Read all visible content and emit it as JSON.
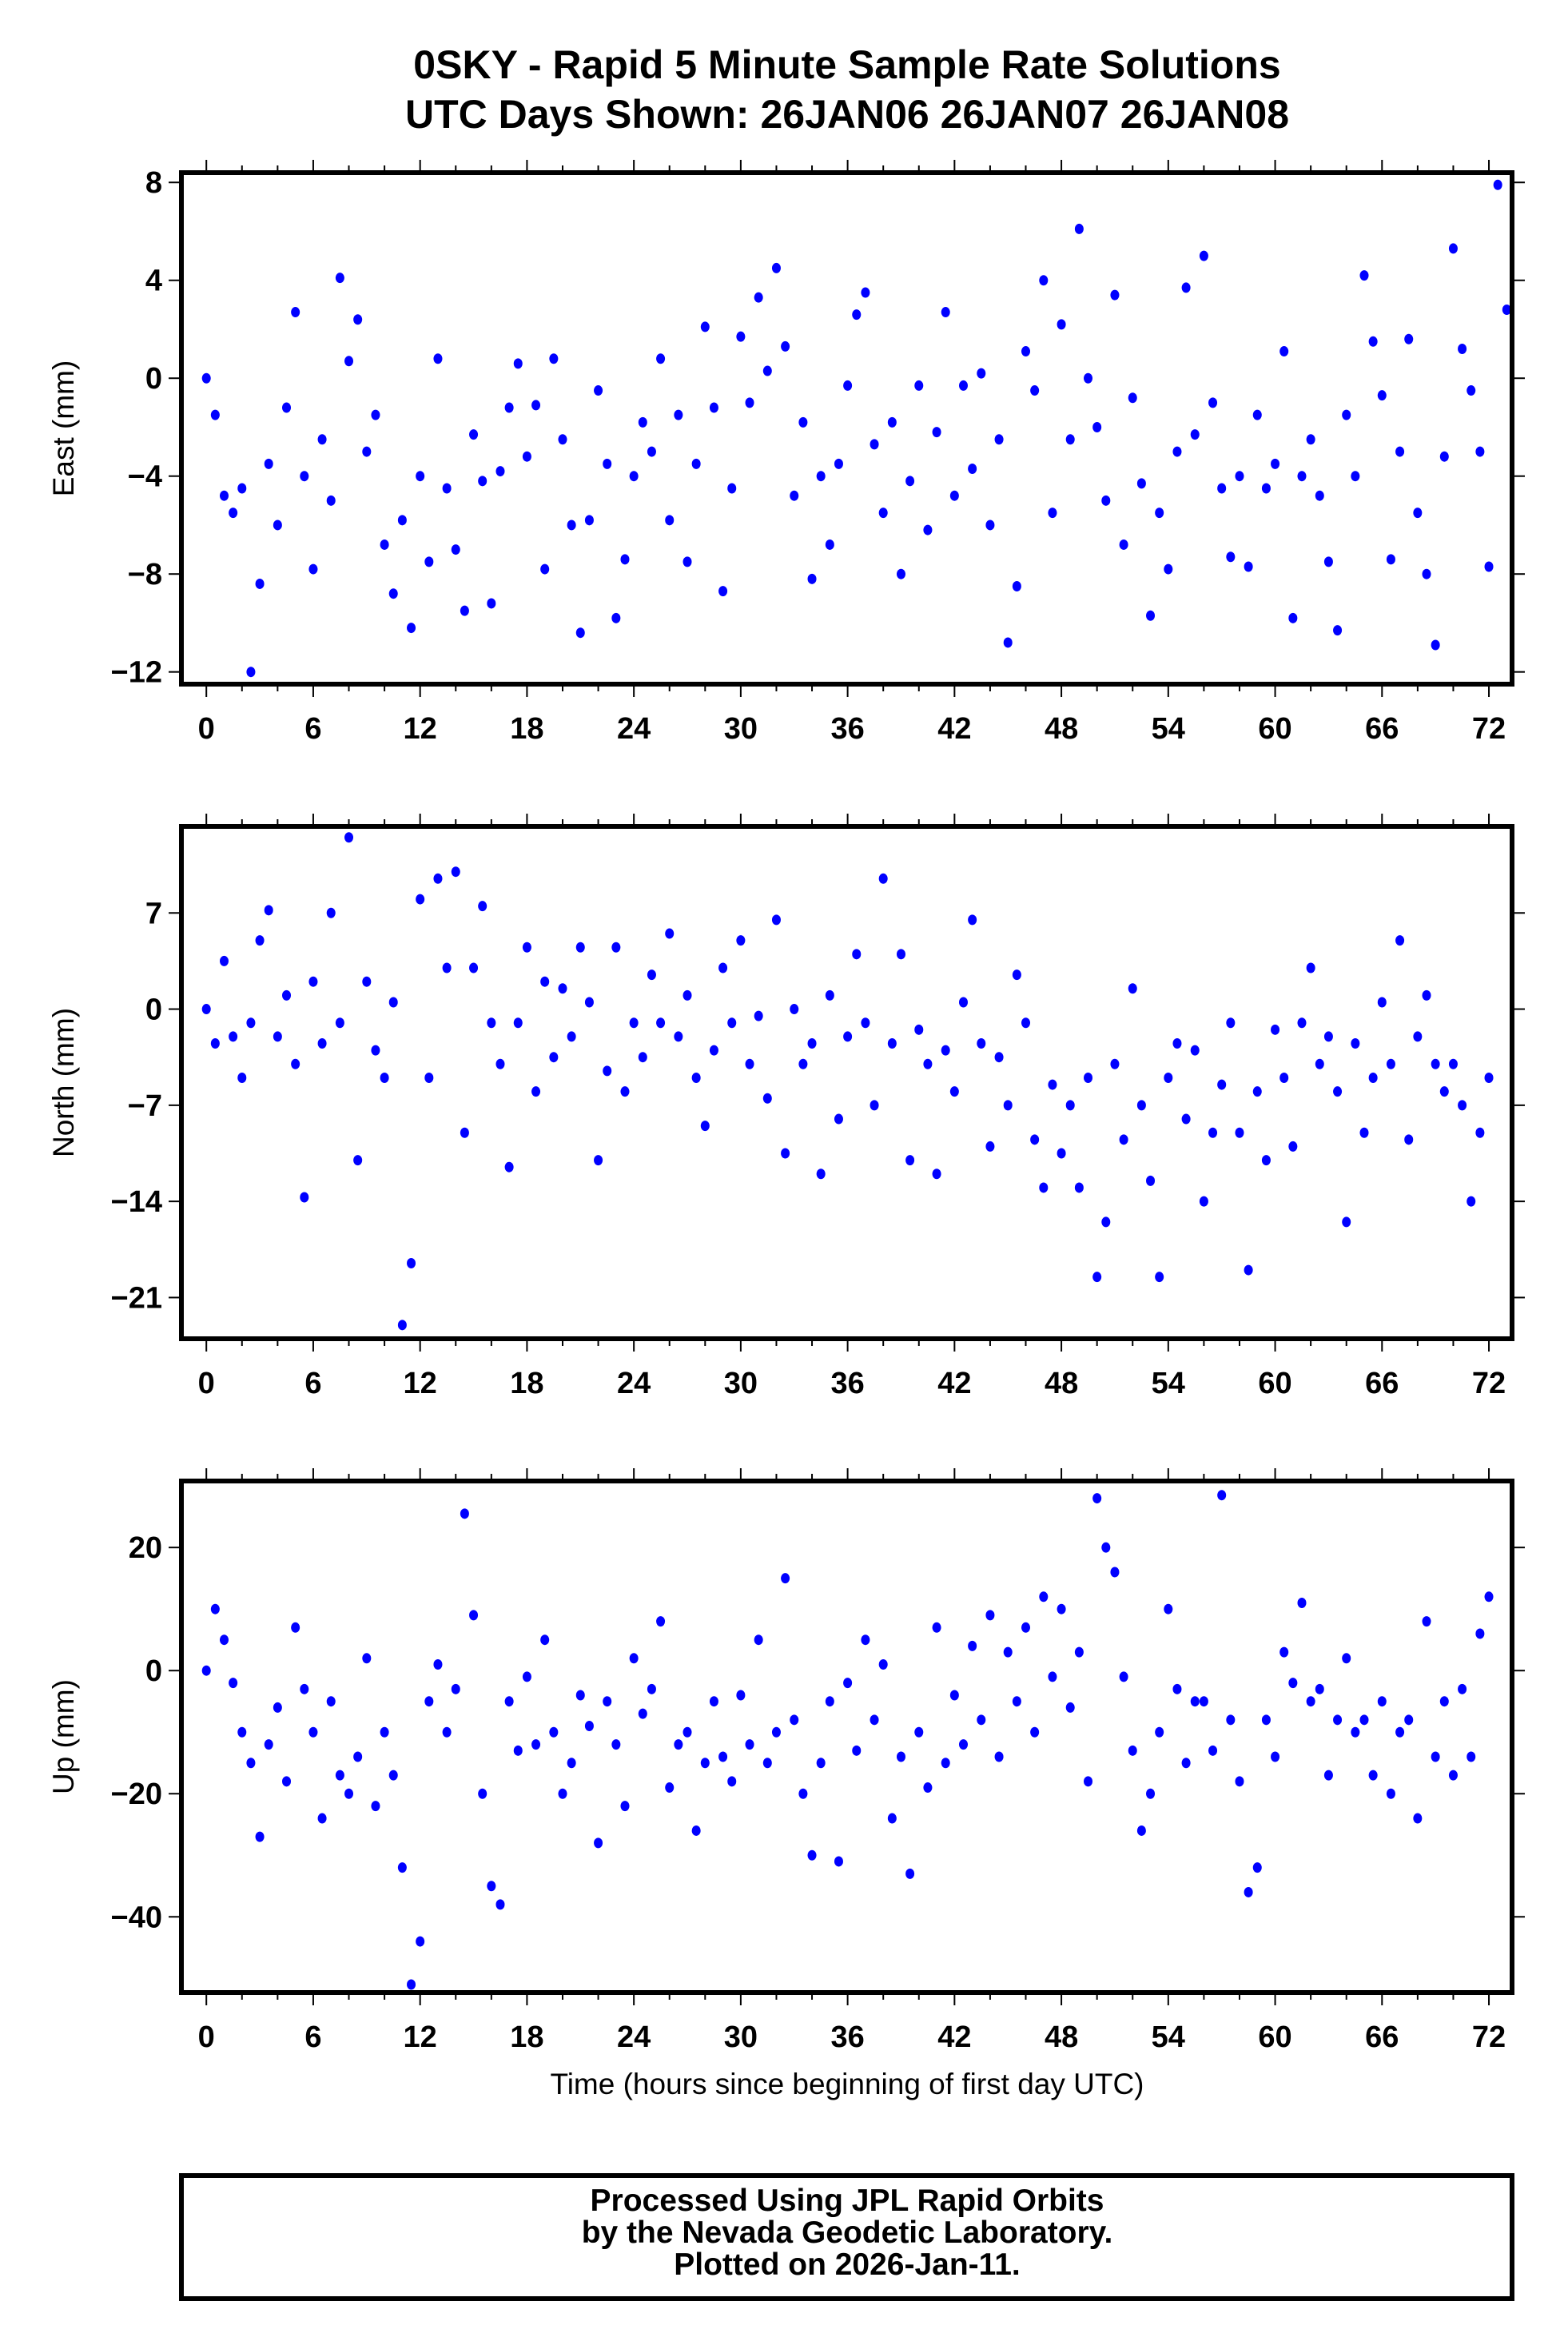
{
  "chart_data": {
    "title": "0SKY - Rapid 5 Minute Sample Rate Solutions",
    "subtitle": "UTC Days Shown:  26JAN06 26JAN07 26JAN08",
    "xlabel": "Time (hours since beginning of first day UTC)",
    "footer": [
      "Processed Using JPL Rapid Orbits",
      "by the Nevada Geodetic Laboratory.",
      "Plotted on 2026-Jan-11."
    ],
    "panels": [
      {
        "type": "scatter",
        "ylabel": "East (mm)",
        "xlim": [
          -1.4,
          73.3
        ],
        "ylim": [
          -12.5,
          8.4
        ],
        "xticks": [
          "0",
          "6",
          "12",
          "18",
          "24",
          "30",
          "36",
          "42",
          "48",
          "54",
          "60",
          "66",
          "72"
        ],
        "yticks": [
          "8",
          "4",
          "0",
          "-4",
          "-8",
          "-12"
        ],
        "ytick_values": [
          8,
          4,
          0,
          -4,
          -8,
          -12
        ],
        "x_start": 0,
        "x_step": 0.5,
        "color": "#0000ff",
        "values": [
          0,
          -1.5,
          -4.8,
          -5.5,
          -4.5,
          -12,
          -8.4,
          -3.5,
          -6,
          -1.2,
          2.7,
          -4,
          -7.8,
          -2.5,
          -5,
          4.1,
          0.7,
          2.4,
          -3,
          -1.5,
          -6.8,
          -8.8,
          -5.8,
          -10.2,
          -4,
          -7.5,
          0.8,
          -4.5,
          -7,
          -9.5,
          -2.3,
          -4.2,
          -9.2,
          -3.8,
          -1.2,
          0.6,
          -3.2,
          -1.1,
          -7.8,
          0.8,
          -2.5,
          -6,
          -10.4,
          -5.8,
          -0.5,
          -3.5,
          -9.8,
          -7.4,
          -4,
          -1.8,
          -3,
          0.8,
          -5.8,
          -1.5,
          -7.5,
          -3.5,
          2.1,
          -1.2,
          -8.7,
          -4.5,
          1.7,
          -1,
          3.3,
          0.3,
          4.5,
          1.3,
          -4.8,
          -1.8,
          -8.2,
          -4,
          -6.8,
          -3.5,
          -0.3,
          2.6,
          3.5,
          -2.7,
          -5.5,
          -1.8,
          -8,
          -4.2,
          -0.3,
          -6.2,
          -2.2,
          2.7,
          -4.8,
          -0.3,
          -3.7,
          0.2,
          -6,
          -2.5,
          -10.8,
          -8.5,
          1.1,
          -0.5,
          4,
          -5.5,
          2.2,
          -2.5,
          6.1,
          0,
          -2,
          -5,
          3.4,
          -6.8,
          -0.8,
          -4.3,
          -9.7,
          -5.5,
          -7.8,
          -3,
          3.7,
          -2.3,
          5,
          -1,
          -4.5,
          -7.3,
          -4,
          -7.7,
          -1.5,
          -4.5,
          -3.5,
          1.1,
          -9.8,
          -4,
          -2.5,
          -4.8,
          -7.5,
          -10.3,
          -1.5,
          -4,
          4.2,
          1.5,
          -0.7,
          -7.4,
          -3,
          1.6,
          -5.5,
          -8,
          -10.9,
          -3.2,
          5.3,
          1.2,
          -0.5,
          -3,
          -7.7,
          7.9,
          2.8
        ]
      },
      {
        "type": "scatter",
        "ylabel": "North (mm)",
        "xlim": [
          -1.4,
          73.3
        ],
        "ylim": [
          -24,
          13.3
        ],
        "xticks": [
          "0",
          "6",
          "12",
          "18",
          "24",
          "30",
          "36",
          "42",
          "48",
          "54",
          "60",
          "66",
          "72"
        ],
        "yticks": [
          "7",
          "0",
          "-7",
          "-14",
          "-21"
        ],
        "ytick_values": [
          7,
          0,
          -7,
          -14,
          -21
        ],
        "x_start": 0,
        "x_step": 0.5,
        "color": "#0000ff",
        "values": [
          0,
          -2.5,
          3.5,
          -2,
          -5,
          -1,
          5,
          7.2,
          -2,
          1,
          -4,
          -13.7,
          2,
          -2.5,
          7,
          -1,
          12.5,
          -11,
          2,
          -3,
          -5,
          0.5,
          -23,
          -18.5,
          8,
          -5,
          9.5,
          3,
          10,
          -9,
          3,
          7.5,
          -1,
          -4,
          -11.5,
          -1,
          4.5,
          -6,
          2,
          -3.5,
          1.5,
          -2,
          4.5,
          0.5,
          -11,
          -4.5,
          4.5,
          -6,
          -1,
          -3.5,
          2.5,
          -1,
          5.5,
          -2,
          1,
          -5,
          -8.5,
          -3,
          3,
          -1,
          5,
          -4,
          -0.5,
          -6.5,
          6.5,
          -10.5,
          0,
          -4,
          -2.5,
          -12,
          1,
          -8,
          -2,
          4,
          -1,
          -7,
          9.5,
          -2.5,
          4,
          -11,
          -1.5,
          -4,
          -12,
          -3,
          -6,
          0.5,
          6.5,
          -2.5,
          -10,
          -3.5,
          -7,
          2.5,
          -1,
          -9.5,
          -13,
          -5.5,
          -10.5,
          -7,
          -13,
          -5,
          -19.5,
          -15.5,
          -4,
          -9.5,
          1.5,
          -7,
          -12.5,
          -19.5,
          -5,
          -2.5,
          -8,
          -3,
          -14,
          -9,
          -5.5,
          -1,
          -9,
          -19,
          -6,
          -11,
          -1.5,
          -5,
          -10,
          -1,
          3,
          -4,
          -2,
          -6,
          -15.5,
          -2.5,
          -9,
          -5,
          0.5,
          -4,
          5,
          -9.5,
          -2,
          1,
          -4,
          -6,
          -4,
          -7,
          -14,
          -9,
          -5
        ]
      },
      {
        "type": "scatter",
        "ylabel": "Up (mm)",
        "xlim": [
          -1.4,
          73.3
        ],
        "ylim": [
          -52.3,
          30.8
        ],
        "xticks": [
          "0",
          "6",
          "12",
          "18",
          "24",
          "30",
          "36",
          "42",
          "48",
          "54",
          "60",
          "66",
          "72"
        ],
        "yticks": [
          "20",
          "0",
          "-20",
          "-40"
        ],
        "ytick_values": [
          20,
          0,
          -20,
          -40
        ],
        "x_start": 0,
        "x_step": 0.5,
        "color": "#0000ff",
        "values": [
          0,
          10,
          5,
          -2,
          -10,
          -15,
          -27,
          -12,
          -6,
          -18,
          7,
          -3,
          -10,
          -24,
          -5,
          -17,
          -20,
          -14,
          2,
          -22,
          -10,
          -17,
          -32,
          -51,
          -44,
          -5,
          1,
          -10,
          -3,
          25.5,
          9,
          -20,
          -35,
          -38,
          -5,
          -13,
          -1,
          -12,
          5,
          -10,
          -20,
          -15,
          -4,
          -9,
          -28,
          -5,
          -12,
          -22,
          2,
          -7,
          -3,
          8,
          -19,
          -12,
          -10,
          -26,
          -15,
          -5,
          -14,
          -18,
          -4,
          -12,
          5,
          -15,
          -10,
          15,
          -8,
          -20,
          -30,
          -15,
          -5,
          -31,
          -2,
          -13,
          5,
          -8,
          1,
          -24,
          -14,
          -33,
          -10,
          -19,
          7,
          -15,
          -4,
          -12,
          4,
          -8,
          9,
          -14,
          3,
          -5,
          7,
          -10,
          12,
          -1,
          10,
          -6,
          3,
          -18,
          28,
          20,
          16,
          -1,
          -13,
          -26,
          -20,
          -10,
          10,
          -3,
          -15,
          -5,
          -5,
          -13,
          28.5,
          -8,
          -18,
          -36,
          -32,
          -8,
          -14,
          3,
          -2,
          11,
          -5,
          -3,
          -17,
          -8,
          2,
          -10,
          -8,
          -17,
          -5,
          -20,
          -10,
          -8,
          -24,
          8,
          -14,
          -5,
          -17,
          -3,
          -14,
          6,
          12
        ]
      }
    ]
  }
}
